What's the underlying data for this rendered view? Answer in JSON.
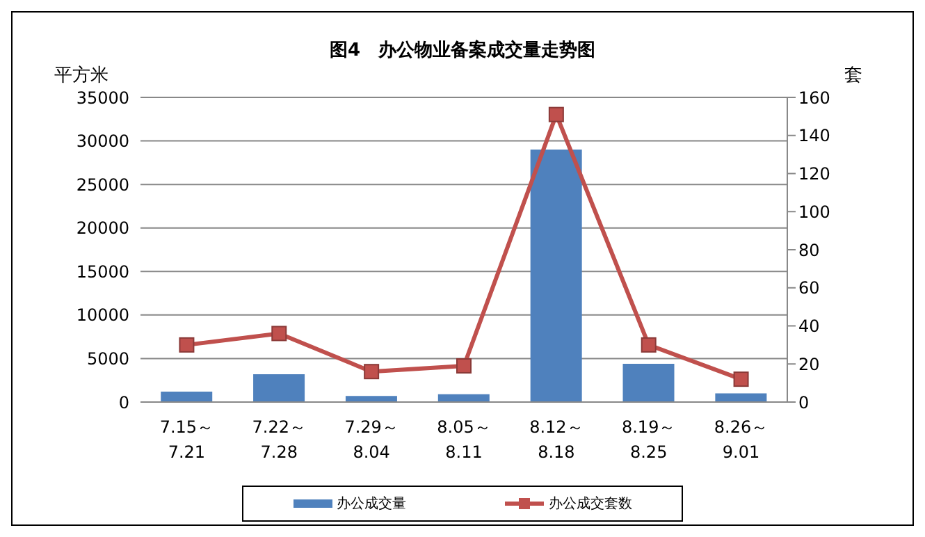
{
  "chart_data": {
    "type": "bar",
    "title": "图4　办公物业备案成交量走势图",
    "ylabel": "平方米",
    "y2label": "套",
    "categories": [
      "7.15～\n7.21",
      "7.22～\n7.28",
      "7.29～\n8.04",
      "8.05～\n8.11",
      "8.12～\n8.18",
      "8.19～\n8.25",
      "8.26～\n9.01"
    ],
    "series": [
      {
        "name": "办公成交量",
        "color": "#4f81bd",
        "values": [
          1200,
          3200,
          700,
          900,
          29000,
          4400,
          1000
        ]
      },
      {
        "name": "办公成交套数",
        "type": "line",
        "axis": "y2",
        "color": "#c0504d",
        "marker": "square",
        "values": [
          30,
          36,
          16,
          19,
          151,
          30,
          12
        ]
      }
    ],
    "ylim": [
      0,
      35000
    ],
    "yticks": [
      0,
      5000,
      10000,
      15000,
      20000,
      25000,
      30000,
      35000
    ],
    "y2lim": [
      0,
      160
    ],
    "y2ticks": [
      0,
      20,
      40,
      60,
      80,
      100,
      120,
      140,
      160
    ],
    "grid": "y",
    "legend": "bottom"
  }
}
